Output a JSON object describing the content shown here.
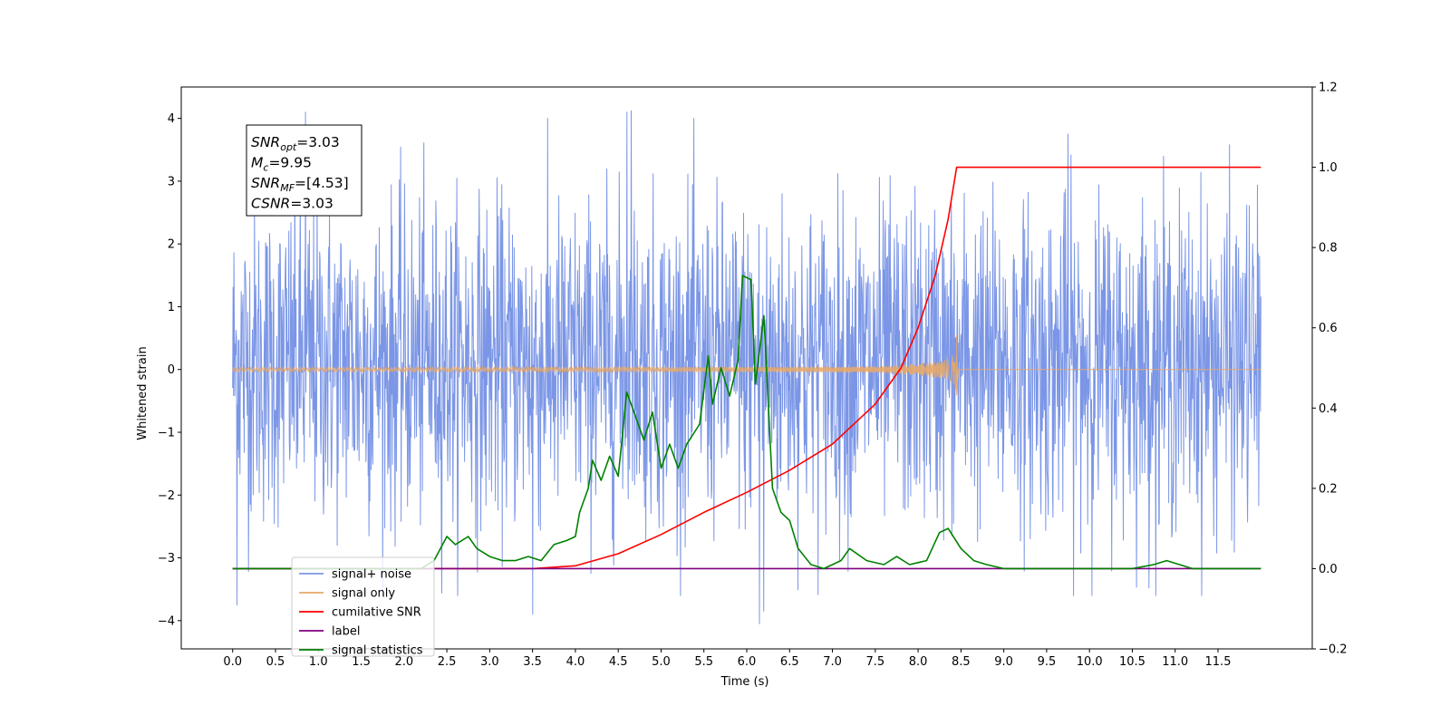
{
  "chart_data": {
    "type": "line",
    "xlabel": "Time (s)",
    "ylabel": "Whitened strain",
    "xlim": [
      -0.6,
      12.6
    ],
    "ylim": [
      -4.45,
      4.5
    ],
    "y2lim": [
      -0.2,
      1.2
    ],
    "x_ticks": [
      0.0,
      0.5,
      1.0,
      1.5,
      2.0,
      2.5,
      3.0,
      3.5,
      4.0,
      4.5,
      5.0,
      5.5,
      6.0,
      6.5,
      7.0,
      7.5,
      8.0,
      8.5,
      9.0,
      9.5,
      10.0,
      10.5,
      11.0,
      11.5
    ],
    "x_tick_labels": [
      "0.0",
      "0.5",
      "1.0",
      "1.5",
      "2.0",
      "2.5",
      "3.0",
      "3.5",
      "4.0",
      "4.5",
      "5.0",
      "5.5",
      "6.0",
      "6.5",
      "7.0",
      "7.5",
      "8.0",
      "8.5",
      "9.0",
      "9.5",
      "10.0",
      "10.5",
      "11.0",
      "11.5"
    ],
    "y_ticks": [
      -4,
      -3,
      -2,
      -1,
      0,
      1,
      2,
      3,
      4
    ],
    "y_tick_labels": [
      "−4",
      "−3",
      "−2",
      "−1",
      "0",
      "1",
      "2",
      "3",
      "4"
    ],
    "y2_ticks": [
      -0.2,
      0.0,
      0.2,
      0.4,
      0.6,
      0.8,
      1.0,
      1.2
    ],
    "y2_tick_labels": [
      "−0.2",
      "0.0",
      "0.2",
      "0.4",
      "0.6",
      "0.8",
      "1.0",
      "1.2"
    ],
    "grid": false,
    "legend_position": "lower-left",
    "annotation": {
      "lines": [
        {
          "base": "SNR",
          "sub": "opt",
          "value": "=3.03"
        },
        {
          "base": "M",
          "sub": "c",
          "value": "=9.95"
        },
        {
          "base": "SNR",
          "sub": "MF",
          "value": "=[4.53]"
        },
        {
          "base": "CSNR",
          "sub": "",
          "value": "=3.03"
        }
      ]
    },
    "series": [
      {
        "name": "signal+ noise",
        "axis": "left",
        "color": "#7b96e6",
        "style": "noise",
        "x_range": [
          0.0,
          12.0
        ],
        "typical_range": [
          -2.2,
          2.4
        ],
        "extremes": [
          [
            0.05,
            -3.75
          ],
          [
            0.85,
            4.1
          ],
          [
            4.6,
            4.1
          ],
          [
            4.65,
            4.12
          ],
          [
            6.15,
            -4.05
          ],
          [
            6.2,
            -3.85
          ],
          [
            9.75,
            3.75
          ],
          [
            3.5,
            -3.9
          ]
        ]
      },
      {
        "name": "signal only",
        "axis": "left",
        "color": "#e8a868",
        "style": "chirp",
        "x_range": [
          0.0,
          12.0
        ],
        "merger_time": 8.45,
        "peak_amplitude": [
          0.55,
          -0.4
        ]
      },
      {
        "name": "cumilative SNR",
        "axis": "right",
        "color": "#ff0000",
        "x": [
          0.0,
          3.0,
          3.5,
          4.0,
          4.5,
          5.0,
          5.5,
          6.0,
          6.5,
          7.0,
          7.5,
          7.8,
          8.0,
          8.2,
          8.35,
          8.45,
          12.0
        ],
        "y": [
          0.0,
          0.0,
          0.0,
          0.007,
          0.037,
          0.085,
          0.14,
          0.19,
          0.245,
          0.31,
          0.41,
          0.5,
          0.6,
          0.73,
          0.87,
          1.0,
          1.0
        ]
      },
      {
        "name": "label",
        "axis": "right",
        "color": "#800080",
        "x": [
          0.0,
          12.0
        ],
        "y": [
          0.0,
          0.0
        ]
      },
      {
        "name": "signal statistics",
        "axis": "right",
        "color": "#008000",
        "x": [
          0.0,
          2.2,
          2.35,
          2.5,
          2.6,
          2.75,
          2.85,
          3.0,
          3.15,
          3.3,
          3.45,
          3.6,
          3.75,
          3.9,
          4.0,
          4.05,
          4.15,
          4.2,
          4.3,
          4.4,
          4.5,
          4.6,
          4.7,
          4.8,
          4.9,
          5.0,
          5.1,
          5.2,
          5.3,
          5.45,
          5.55,
          5.6,
          5.7,
          5.8,
          5.9,
          5.95,
          6.05,
          6.1,
          6.2,
          6.3,
          6.4,
          6.5,
          6.6,
          6.75,
          6.9,
          7.1,
          7.2,
          7.4,
          7.6,
          7.75,
          7.9,
          8.1,
          8.25,
          8.35,
          8.5,
          8.65,
          8.8,
          9.0,
          9.5,
          10.5,
          10.75,
          10.9,
          11.05,
          11.2,
          11.5,
          12.0
        ],
        "y": [
          0.0,
          0.0,
          0.02,
          0.08,
          0.06,
          0.08,
          0.05,
          0.03,
          0.02,
          0.02,
          0.03,
          0.02,
          0.06,
          0.07,
          0.08,
          0.14,
          0.2,
          0.27,
          0.22,
          0.28,
          0.23,
          0.44,
          0.38,
          0.32,
          0.39,
          0.25,
          0.31,
          0.25,
          0.31,
          0.36,
          0.53,
          0.41,
          0.5,
          0.43,
          0.52,
          0.73,
          0.72,
          0.46,
          0.63,
          0.2,
          0.14,
          0.12,
          0.05,
          0.01,
          0.0,
          0.02,
          0.05,
          0.02,
          0.01,
          0.03,
          0.01,
          0.02,
          0.09,
          0.1,
          0.05,
          0.02,
          0.01,
          0.0,
          0.0,
          0.0,
          0.01,
          0.02,
          0.01,
          0.0,
          0.0,
          0.0
        ]
      }
    ]
  }
}
